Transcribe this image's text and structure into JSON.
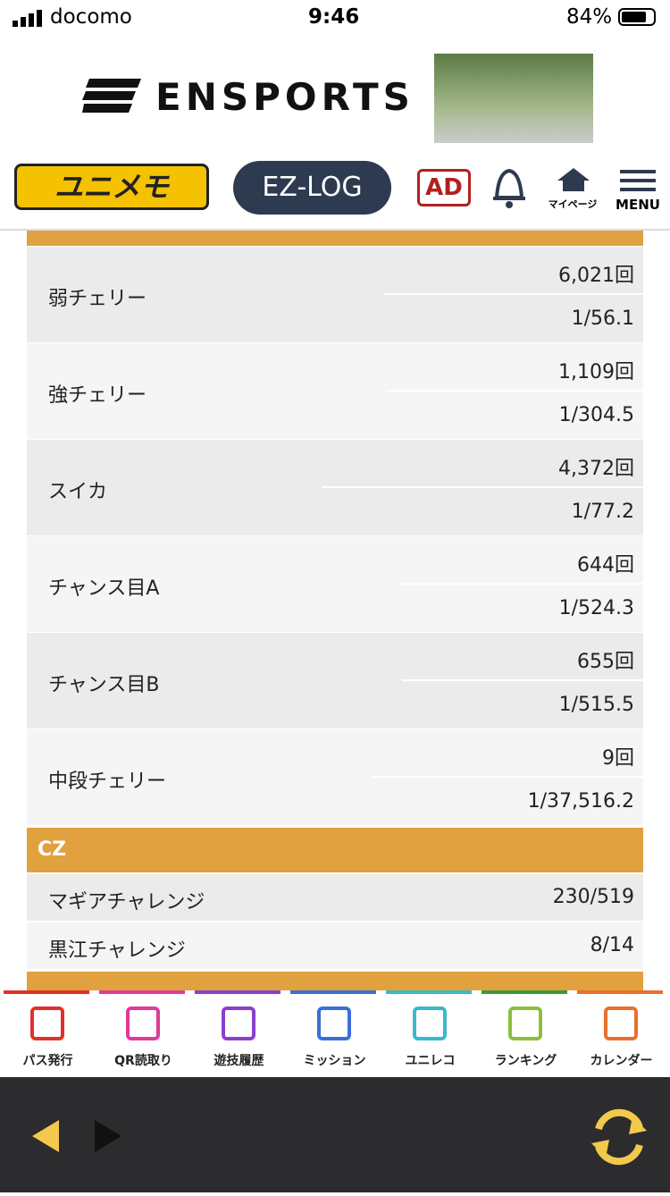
{
  "status_bar": {
    "carrier": "docomo",
    "time": "9:46",
    "battery": "84%"
  },
  "ad_banner": {
    "brand": "ENSPORTS"
  },
  "header": {
    "logo": "ユニメモ",
    "ez_log": "EZ-LOG",
    "ad": "AD",
    "mypage": "マイページ",
    "menu": "MENU"
  },
  "sections": [
    {
      "rows": [
        {
          "label": "弱チェリー",
          "count": "6,021回",
          "rate": "1/56.1"
        },
        {
          "label": "強チェリー",
          "count": "1,109回",
          "rate": "1/304.5"
        },
        {
          "label": "スイカ",
          "count": "4,372回",
          "rate": "1/77.2"
        },
        {
          "label": "チャンス目A",
          "count": "644回",
          "rate": "1/524.3"
        },
        {
          "label": "チャンス目B",
          "count": "655回",
          "rate": "1/515.5"
        },
        {
          "label": "中段チェリー",
          "count": "9回",
          "rate": "1/37,516.2"
        }
      ]
    },
    {
      "title": "CZ",
      "rows": [
        {
          "label": "マギアチャレンジ",
          "value": "230/519"
        },
        {
          "label": "黒江チャレンジ",
          "value": "8/14"
        }
      ]
    }
  ],
  "bottom_nav": [
    "パス発行",
    "QR読取り",
    "遊技履歴",
    "ミッション",
    "ユニレコ",
    "ランキング",
    "カレンダー"
  ]
}
